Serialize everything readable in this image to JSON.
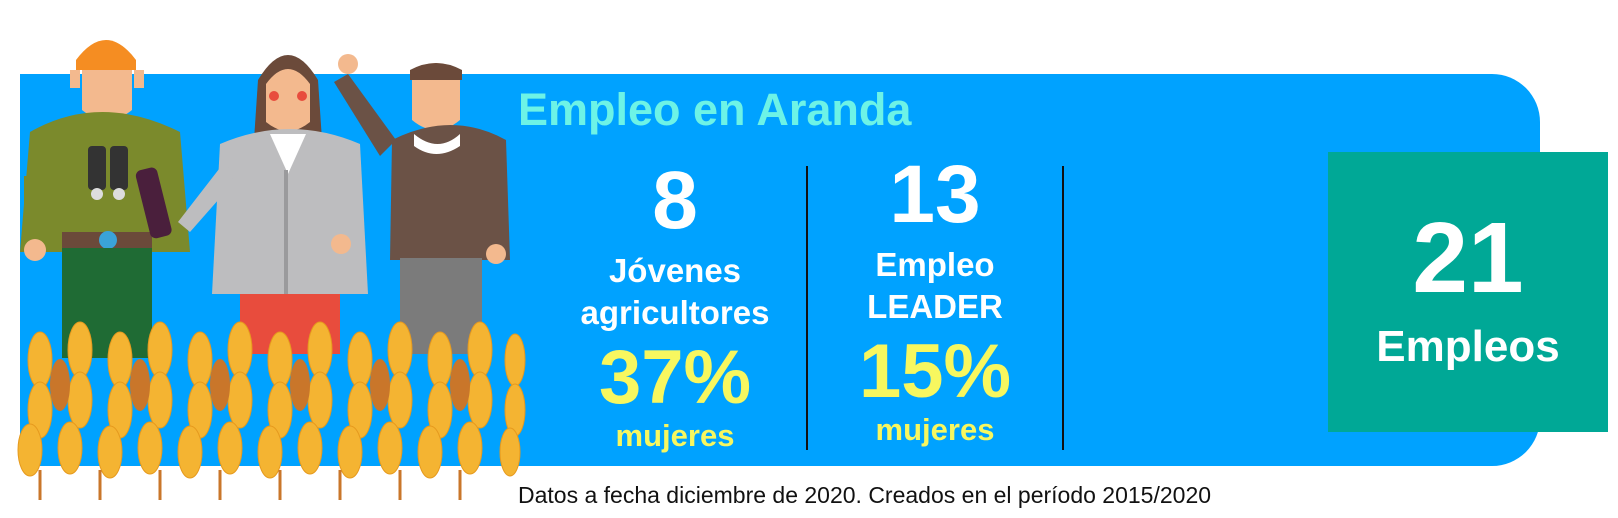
{
  "title": "Empleo en Aranda",
  "stats": [
    {
      "number": "8",
      "label_line1": "Jóvenes",
      "label_line2": "agricultores",
      "percent": "37%",
      "percent_label": "mujeres"
    },
    {
      "number": "13",
      "label_line1": "Empleo",
      "label_line2": "LEADER",
      "percent": "15%",
      "percent_label": "mujeres"
    }
  ],
  "total": {
    "number": "21",
    "label": "Empleos"
  },
  "footnote": "Datos a fecha diciembre de 2020. Creados en el período 2015/2020",
  "colors": {
    "banner": "#00a2ff",
    "title": "#6df3e6",
    "highlight": "#f7f75f",
    "total_box": "#00a896"
  },
  "icons": [
    "farmer-illustration",
    "wheat-field-illustration"
  ]
}
